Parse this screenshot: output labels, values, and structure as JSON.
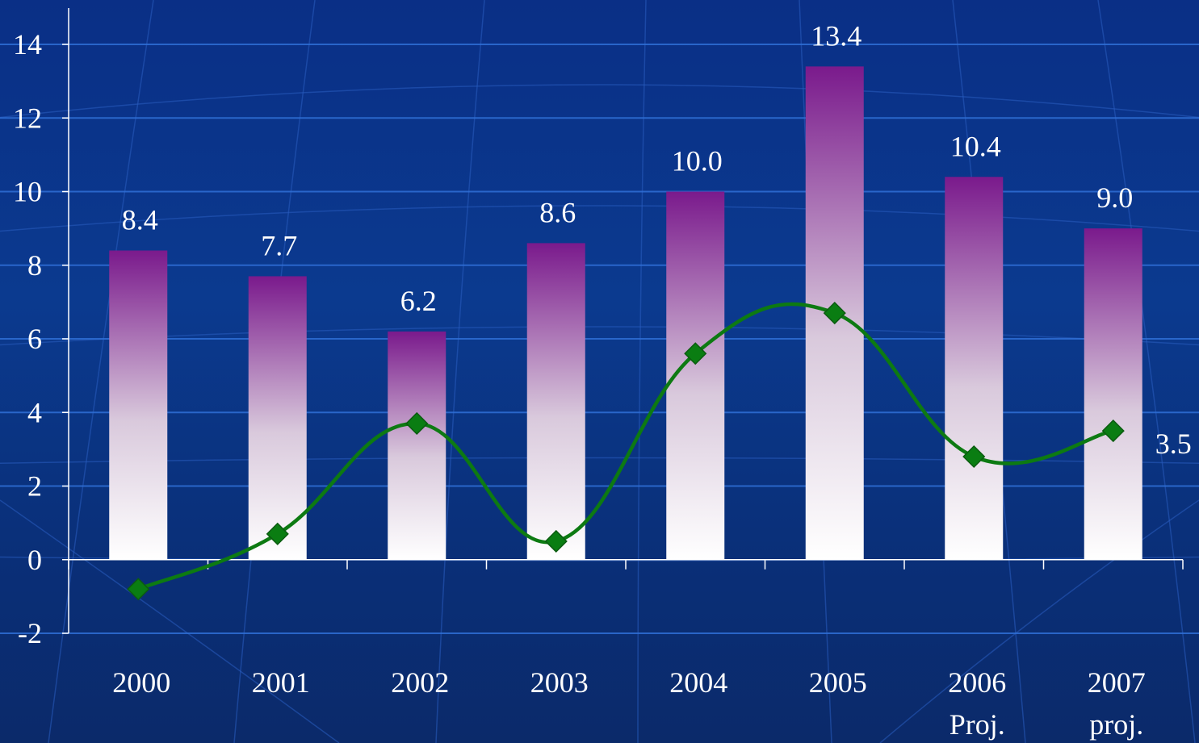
{
  "chart_data": {
    "type": "bar",
    "categories": [
      "2000",
      "2001",
      "2002",
      "2003",
      "2004",
      "2005",
      "2006",
      "2007"
    ],
    "category_sublabels": [
      "",
      "",
      "",
      "",
      "",
      "",
      "Proj.",
      "proj."
    ],
    "series": [
      {
        "type": "bar",
        "values": [
          8.4,
          7.7,
          6.2,
          8.6,
          10.0,
          13.4,
          10.4,
          9.0
        ],
        "labels": [
          "8.4",
          "7.7",
          "6.2",
          "8.6",
          "10.0",
          "13.4",
          "10.4",
          "9.0"
        ]
      },
      {
        "type": "line",
        "values": [
          -0.8,
          0.7,
          3.7,
          0.5,
          5.6,
          6.7,
          2.8,
          3.5
        ],
        "labels": [
          "",
          "",
          "",
          "",
          "",
          "",
          "",
          "3.5"
        ]
      }
    ],
    "title": "",
    "xlabel": "",
    "ylabel": "",
    "ylim": [
      -2,
      14
    ],
    "yticks": [
      "-2",
      "0",
      "2",
      "4",
      "6",
      "8",
      "10",
      "12",
      "14"
    ],
    "grid": true,
    "legend": "none",
    "colors": {
      "bar_top": "#7a1a8c",
      "bar_bottom": "#ffffff",
      "line": "#0d7a12",
      "marker": "#0a7d12",
      "grid": "#2f6fd6",
      "axis": "#ffffff"
    }
  }
}
